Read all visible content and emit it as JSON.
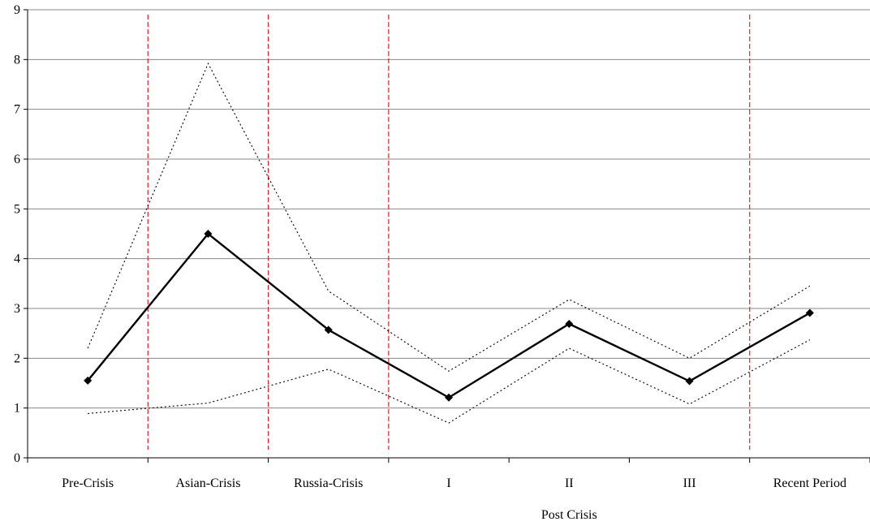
{
  "chart_data": {
    "type": "line",
    "categories": [
      "Pre-Crisis",
      "Asian-Crisis",
      "Russia-Crisis",
      "I",
      "II",
      "III",
      "Recent Period"
    ],
    "xlabel": "Post Crisis",
    "ylim": [
      0,
      9
    ],
    "yticks": [
      "0",
      "1",
      "2",
      "3",
      "4",
      "5",
      "6",
      "7",
      "8",
      "9"
    ],
    "grid": true,
    "series": [
      {
        "style": "solid-with-markers",
        "color": "#000000",
        "values": [
          1.55,
          4.5,
          2.57,
          1.21,
          2.69,
          1.54,
          2.91
        ]
      },
      {
        "style": "dotted-upper",
        "color": "#000000",
        "values": [
          2.2,
          7.92,
          3.35,
          1.74,
          3.18,
          2.0,
          3.45
        ]
      },
      {
        "style": "dotted-lower",
        "color": "#000000",
        "values": [
          0.89,
          1.1,
          1.78,
          0.7,
          2.2,
          1.08,
          2.37
        ]
      }
    ],
    "period_dividers_after_index": [
      0,
      1,
      2,
      5
    ],
    "divider_color": "#e0202a"
  }
}
